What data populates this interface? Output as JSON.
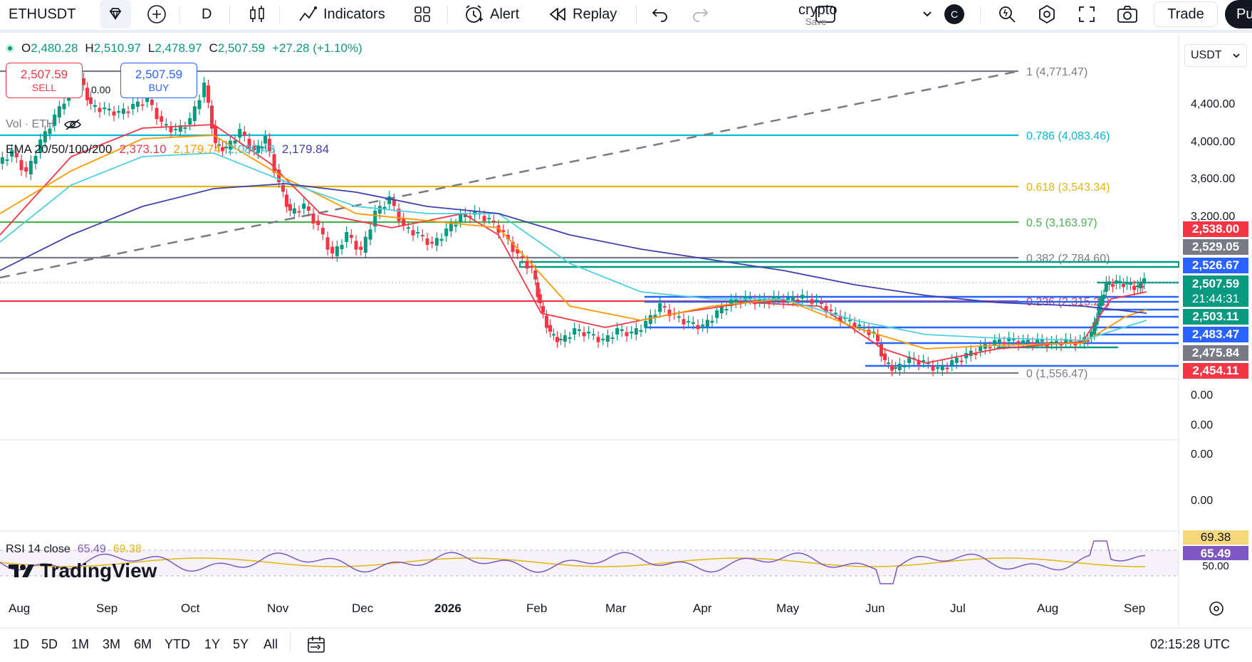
{
  "toolbar": {
    "symbol": "ETHUSDT",
    "interval": "D",
    "indicators_label": "Indicators",
    "alert_label": "Alert",
    "replay_label": "Replay",
    "layout_name": "crypto",
    "layout_save": "Save",
    "avatar_letter": "C",
    "trade_label": "Trade",
    "publish_label": "Pu"
  },
  "legend": {
    "open_label": "O",
    "open": "2,480.28",
    "high_label": "H",
    "high": "2,510.97",
    "low_label": "L",
    "low": "2,478.97",
    "close_label": "C",
    "close": "2,507.59",
    "change": "+27.28 (+1.10%)"
  },
  "quote": {
    "sell_price": "2,507.59",
    "sell_label": "SELL",
    "buy_price": "2,507.59",
    "buy_label": "BUY",
    "spread": "0.00"
  },
  "volume_label": "Vol · ETH",
  "ema": {
    "label": "EMA 20/50/100/200",
    "values": [
      "2,373.10",
      "2,179.74",
      "2,086.43",
      "2,179.84"
    ],
    "colors": [
      "#f23645",
      "#ff9800",
      "#4dd0e1",
      "#3f3fb2"
    ]
  },
  "fib_levels": [
    {
      "label": "1 (4,771.47)",
      "color": "#787b86"
    },
    {
      "label": "0.786 (4,083.46)",
      "color": "#00bcd4"
    },
    {
      "label": "0.618 (3,543.34)",
      "color": "#e4b50e"
    },
    {
      "label": "0.5 (3,163.97)",
      "color": "#4caf50"
    },
    {
      "label": "0.382 (2,784.60)",
      "color": "#787b86"
    },
    {
      "label": "0.236 (2,315.21)",
      "color": "#f23645"
    },
    {
      "label": "0 (1,556.47)",
      "color": "#787b86"
    }
  ],
  "price_scale": {
    "currency": "USDT",
    "ticks": [
      "4,400.00",
      "4,000.00",
      "3,600.00",
      "3,200.00",
      "0.00",
      "0.00",
      "0.00",
      "0.00"
    ],
    "badges": [
      {
        "text": "2,538.00",
        "color": "#f23645"
      },
      {
        "text": "2,529.05",
        "color": "#787b86"
      },
      {
        "text": "2,526.67",
        "color": "#2962ff"
      },
      {
        "text": "2,507.59",
        "color": "#089981"
      },
      {
        "text": "21:44:31",
        "color": "#089981"
      },
      {
        "text": "2,503.11",
        "color": "#089981"
      },
      {
        "text": "2,483.47",
        "color": "#2962ff"
      },
      {
        "text": "2,475.84",
        "color": "#787b86"
      },
      {
        "text": "2,454.11",
        "color": "#f23645"
      }
    ],
    "rsi_badges": [
      {
        "text": "69.38",
        "color": "#f5d87a"
      },
      {
        "text": "65.49",
        "color": "#7e57c2"
      },
      {
        "text": "50.00",
        "color": "#ffffff"
      }
    ]
  },
  "rsi": {
    "label": "RSI 14 close",
    "value": "65.49",
    "ma": "69.38"
  },
  "time_axis": [
    "Aug",
    "Sep",
    "Oct",
    "Nov",
    "Dec",
    "2026",
    "Feb",
    "Mar",
    "Apr",
    "May",
    "Jun",
    "Jul",
    "Aug",
    "Sep"
  ],
  "ranges": [
    "1D",
    "5D",
    "1M",
    "3M",
    "6M",
    "YTD",
    "1Y",
    "5Y",
    "All"
  ],
  "clock": "02:15:28 UTC",
  "brand": "TradingView",
  "colors": {
    "up": "#089981",
    "down": "#f23645",
    "accent": "#2962ff"
  }
}
